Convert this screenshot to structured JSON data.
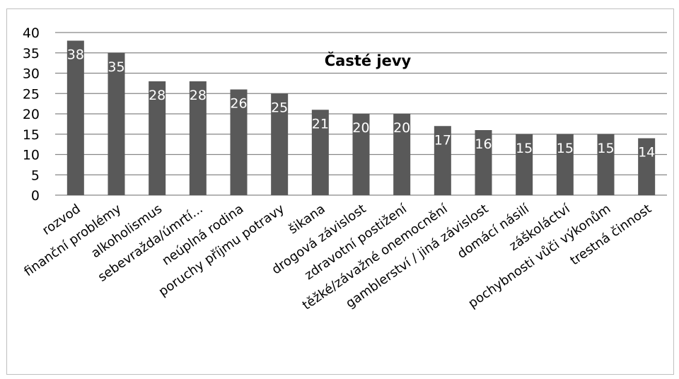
{
  "chart_data": {
    "type": "bar",
    "title": "Časté jevy",
    "xlabel": "",
    "ylabel": "",
    "ylim": [
      0,
      40
    ],
    "yticks": [
      0,
      5,
      10,
      15,
      20,
      25,
      30,
      35,
      40
    ],
    "grid": true,
    "legend": "none",
    "categories": [
      "rozvod",
      "finanční problémy",
      "alkoholismus",
      "sebevražda/úmrtí...",
      "neúplná rodina",
      "poruchy příjmu potravy",
      "šikana",
      "drogová závislost",
      "zdravotní postižení",
      "těžké/závažné onemocnění",
      "gamblerství / jiná závislost",
      "domácí násilí",
      "záškoláctví",
      "pochybnosti vůči výkonům",
      "trestná činnost"
    ],
    "values": [
      38,
      35,
      28,
      28,
      26,
      25,
      21,
      20,
      20,
      17,
      16,
      15,
      15,
      15,
      14
    ],
    "colors": {
      "bar": "#595959",
      "gridline": "#868686",
      "data_label": "#ffffff",
      "text": "#000000",
      "border": "#bfbfbf"
    }
  }
}
